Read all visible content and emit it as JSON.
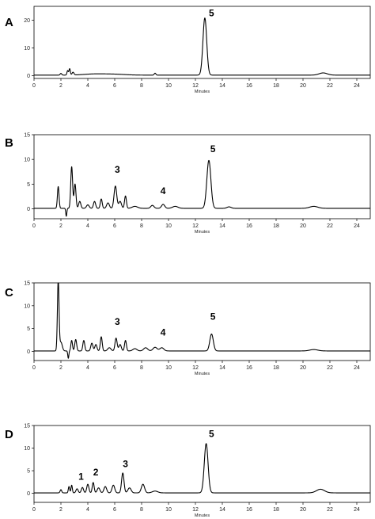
{
  "chart_data": [
    {
      "panel": "A",
      "type": "line",
      "xlabel": "Minutes",
      "ylabel": "",
      "xlim": [
        0,
        25
      ],
      "ylim": [
        -1,
        25
      ],
      "xticks": [
        0,
        2,
        4,
        6,
        8,
        10,
        12,
        14,
        16,
        18,
        20,
        22,
        24
      ],
      "yticks": [
        0,
        10,
        20
      ],
      "baseline": 0.2,
      "peaks": [
        {
          "x": 2.0,
          "y": 0.8,
          "w": 0.06
        },
        {
          "x": 2.5,
          "y": 1.8,
          "w": 0.05
        },
        {
          "x": 2.65,
          "y": 2.5,
          "w": 0.05
        },
        {
          "x": 2.9,
          "y": 1.2,
          "w": 0.07
        },
        {
          "x": 4.5,
          "y": 0.6,
          "w": 0.8
        },
        {
          "x": 6.0,
          "y": 0.5,
          "w": 0.8
        },
        {
          "x": 9.0,
          "y": 0.9,
          "w": 0.06
        },
        {
          "x": 12.7,
          "y": 20.8,
          "w": 0.14
        },
        {
          "x": 21.5,
          "y": 1.0,
          "w": 0.3
        }
      ],
      "annotations": [
        {
          "text": "5",
          "x": 13.0,
          "y": 21.5
        }
      ]
    },
    {
      "panel": "B",
      "type": "line",
      "xlabel": "Minutes",
      "ylabel": "",
      "xlim": [
        0,
        25
      ],
      "ylim": [
        -2,
        15
      ],
      "xticks": [
        0,
        2,
        4,
        6,
        8,
        10,
        12,
        14,
        16,
        18,
        20,
        22,
        24
      ],
      "yticks": [
        0,
        5,
        10,
        15
      ],
      "baseline": 0.1,
      "peaks": [
        {
          "x": 1.8,
          "y": 4.5,
          "w": 0.06
        },
        {
          "x": 2.4,
          "y": -1.5,
          "w": 0.04
        },
        {
          "x": 2.8,
          "y": 8.5,
          "w": 0.07
        },
        {
          "x": 3.05,
          "y": 5.0,
          "w": 0.07
        },
        {
          "x": 3.4,
          "y": 1.5,
          "w": 0.08
        },
        {
          "x": 4.0,
          "y": 0.8,
          "w": 0.1
        },
        {
          "x": 4.5,
          "y": 1.5,
          "w": 0.08
        },
        {
          "x": 5.0,
          "y": 2.0,
          "w": 0.07
        },
        {
          "x": 5.5,
          "y": 1.2,
          "w": 0.1
        },
        {
          "x": 6.05,
          "y": 4.6,
          "w": 0.1
        },
        {
          "x": 6.4,
          "y": 1.5,
          "w": 0.1
        },
        {
          "x": 6.8,
          "y": 2.6,
          "w": 0.07
        },
        {
          "x": 7.5,
          "y": 0.5,
          "w": 0.2
        },
        {
          "x": 8.8,
          "y": 0.7,
          "w": 0.12
        },
        {
          "x": 9.6,
          "y": 0.9,
          "w": 0.12
        },
        {
          "x": 10.5,
          "y": 0.5,
          "w": 0.2
        },
        {
          "x": 13.0,
          "y": 9.8,
          "w": 0.15
        },
        {
          "x": 14.5,
          "y": 0.4,
          "w": 0.15
        },
        {
          "x": 20.8,
          "y": 0.5,
          "w": 0.3
        }
      ],
      "annotations": [
        {
          "text": "3",
          "x": 6.0,
          "y": 7.3
        },
        {
          "text": "4",
          "x": 9.4,
          "y": 3.0
        },
        {
          "text": "5",
          "x": 13.1,
          "y": 11.5
        }
      ]
    },
    {
      "panel": "C",
      "type": "line",
      "xlabel": "Minutes",
      "ylabel": "",
      "xlim": [
        0,
        25
      ],
      "ylim": [
        -2,
        15
      ],
      "xticks": [
        0,
        2,
        4,
        6,
        8,
        10,
        12,
        14,
        16,
        18,
        20,
        22,
        24
      ],
      "yticks": [
        0,
        5,
        10,
        15
      ],
      "baseline": 0.1,
      "peaks": [
        {
          "x": 1.8,
          "y": 15.5,
          "w": 0.06
        },
        {
          "x": 2.0,
          "y": 2.0,
          "w": 0.1
        },
        {
          "x": 2.55,
          "y": -1.5,
          "w": 0.04
        },
        {
          "x": 2.8,
          "y": 2.4,
          "w": 0.06
        },
        {
          "x": 3.1,
          "y": 2.6,
          "w": 0.07
        },
        {
          "x": 3.7,
          "y": 2.4,
          "w": 0.07
        },
        {
          "x": 4.3,
          "y": 1.8,
          "w": 0.08
        },
        {
          "x": 4.6,
          "y": 1.5,
          "w": 0.08
        },
        {
          "x": 5.0,
          "y": 3.2,
          "w": 0.07
        },
        {
          "x": 5.6,
          "y": 0.8,
          "w": 0.12
        },
        {
          "x": 6.1,
          "y": 2.9,
          "w": 0.08
        },
        {
          "x": 6.4,
          "y": 1.5,
          "w": 0.09
        },
        {
          "x": 6.8,
          "y": 2.4,
          "w": 0.07
        },
        {
          "x": 7.5,
          "y": 0.6,
          "w": 0.15
        },
        {
          "x": 8.3,
          "y": 0.8,
          "w": 0.15
        },
        {
          "x": 9.0,
          "y": 0.9,
          "w": 0.15
        },
        {
          "x": 9.5,
          "y": 0.8,
          "w": 0.15
        },
        {
          "x": 13.2,
          "y": 3.8,
          "w": 0.13
        },
        {
          "x": 20.8,
          "y": 0.4,
          "w": 0.3
        }
      ],
      "annotations": [
        {
          "text": "3",
          "x": 6.0,
          "y": 5.8
        },
        {
          "text": "4",
          "x": 9.4,
          "y": 3.5
        },
        {
          "text": "5",
          "x": 13.1,
          "y": 6.9
        }
      ]
    },
    {
      "panel": "D",
      "type": "line",
      "xlabel": "Minutes",
      "ylabel": "",
      "xlim": [
        0,
        25
      ],
      "ylim": [
        -2,
        15
      ],
      "xticks": [
        0,
        2,
        4,
        6,
        8,
        10,
        12,
        14,
        16,
        18,
        20,
        22,
        24
      ],
      "yticks": [
        0,
        5,
        10,
        15
      ],
      "baseline": 0.1,
      "peaks": [
        {
          "x": 2.0,
          "y": 0.8,
          "w": 0.06
        },
        {
          "x": 2.6,
          "y": 1.5,
          "w": 0.05
        },
        {
          "x": 2.8,
          "y": 1.8,
          "w": 0.05
        },
        {
          "x": 3.2,
          "y": 1.0,
          "w": 0.08
        },
        {
          "x": 3.6,
          "y": 1.3,
          "w": 0.08
        },
        {
          "x": 4.0,
          "y": 2.0,
          "w": 0.08
        },
        {
          "x": 4.4,
          "y": 2.4,
          "w": 0.07
        },
        {
          "x": 4.8,
          "y": 1.2,
          "w": 0.1
        },
        {
          "x": 5.3,
          "y": 1.5,
          "w": 0.1
        },
        {
          "x": 5.9,
          "y": 1.8,
          "w": 0.1
        },
        {
          "x": 6.6,
          "y": 4.5,
          "w": 0.09
        },
        {
          "x": 7.1,
          "y": 1.2,
          "w": 0.12
        },
        {
          "x": 8.1,
          "y": 2.0,
          "w": 0.12
        },
        {
          "x": 9.0,
          "y": 0.5,
          "w": 0.2
        },
        {
          "x": 12.8,
          "y": 11.0,
          "w": 0.14
        },
        {
          "x": 21.3,
          "y": 0.9,
          "w": 0.3
        }
      ],
      "annotations": [
        {
          "text": "1",
          "x": 3.3,
          "y": 3.0
        },
        {
          "text": "2",
          "x": 4.4,
          "y": 4.0
        },
        {
          "text": "3",
          "x": 6.6,
          "y": 5.8
        },
        {
          "text": "5",
          "x": 13.0,
          "y": 12.5
        }
      ]
    }
  ]
}
